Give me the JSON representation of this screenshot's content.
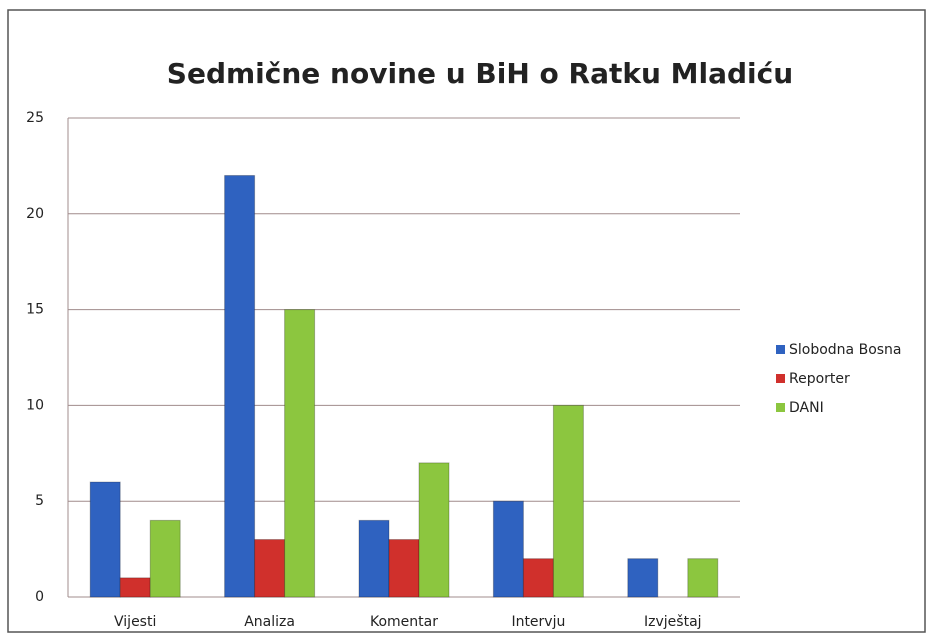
{
  "chart_data": {
    "type": "bar",
    "title": "Sedmične novine u BiH o Ratku Mladiću",
    "categories": [
      "Vijesti",
      "Analiza",
      "Komentar",
      "Intervju",
      "Izvještaj"
    ],
    "series": [
      {
        "name": "Slobodna Bosna",
        "color": "#2f62c0",
        "values": [
          6,
          22,
          4,
          5,
          2
        ]
      },
      {
        "name": "Reporter",
        "color": "#d0302c",
        "values": [
          1,
          3,
          3,
          2,
          0
        ]
      },
      {
        "name": "DANI",
        "color": "#8cc63f",
        "values": [
          4,
          15,
          7,
          10,
          2
        ]
      }
    ],
    "ylim": [
      0,
      25
    ],
    "yticks": [
      0,
      5,
      10,
      15,
      20,
      25
    ],
    "grid": true,
    "legend": "right"
  }
}
